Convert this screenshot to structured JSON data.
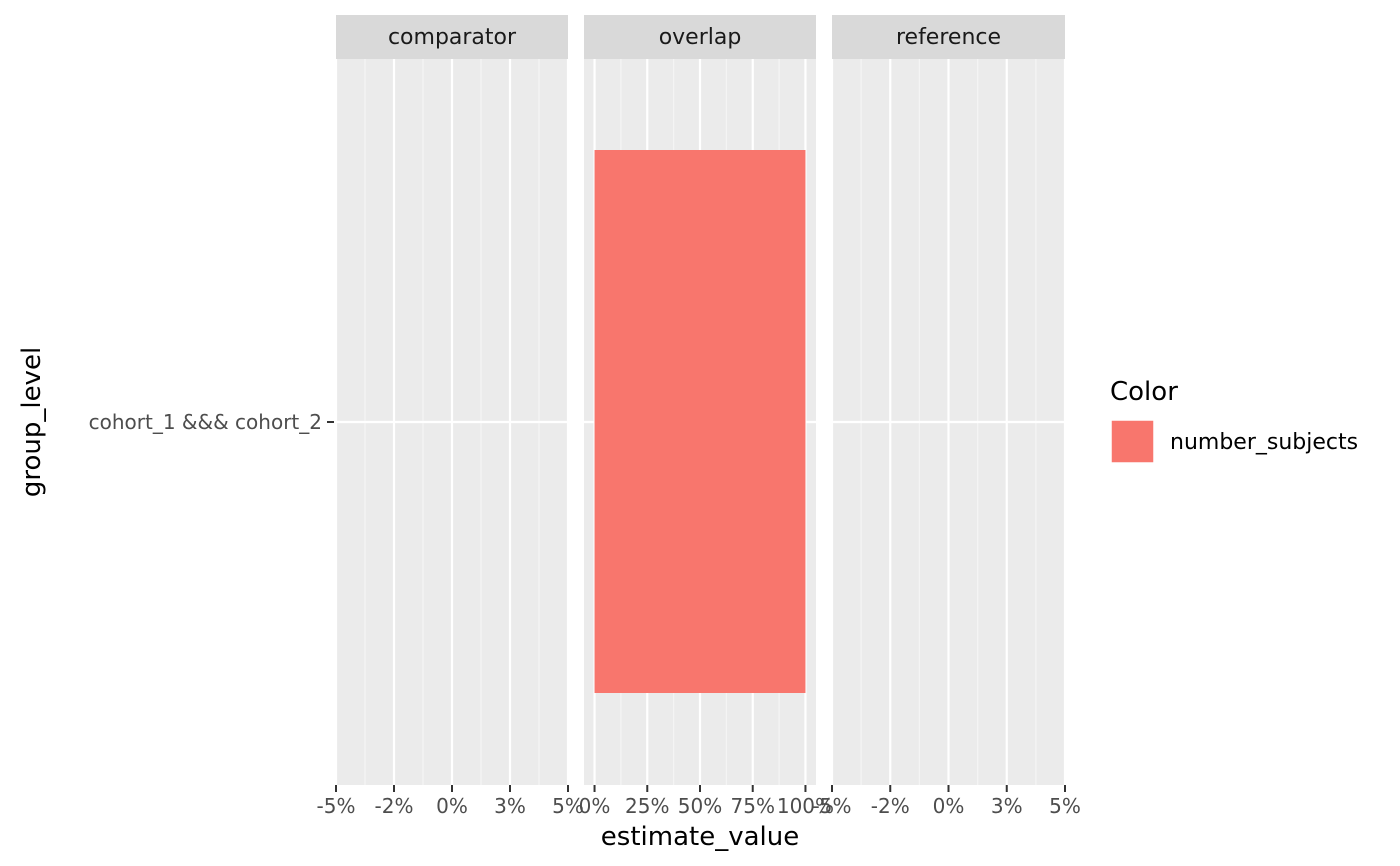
{
  "chart_data": {
    "type": "bar",
    "orientation": "horizontal",
    "facet_by": "variable_name",
    "facets": [
      {
        "label": "comparator",
        "xlim": [
          -5,
          5
        ],
        "x_ticks": [
          -5,
          -2.5,
          0,
          2.5,
          5
        ],
        "x_tick_labels": [
          "-5%",
          "-2%",
          "0%",
          "3%",
          "5%"
        ],
        "bars": []
      },
      {
        "label": "overlap",
        "xlim": [
          -5,
          105
        ],
        "x_ticks": [
          0,
          25,
          50,
          75,
          100
        ],
        "x_tick_labels": [
          "0%",
          "25%",
          "50%",
          "75%",
          "100%"
        ],
        "bars": [
          {
            "category": "cohort_1 &&& cohort_2",
            "value": 100,
            "series": "number_subjects"
          }
        ]
      },
      {
        "label": "reference",
        "xlim": [
          -5,
          5
        ],
        "x_ticks": [
          -5,
          -2.5,
          0,
          2.5,
          5
        ],
        "x_tick_labels": [
          "-5%",
          "-2%",
          "0%",
          "3%",
          "5%"
        ],
        "bars": []
      }
    ],
    "categories": [
      "cohort_1 &&& cohort_2"
    ],
    "series": [
      {
        "name": "number_subjects",
        "color": "#F8766D"
      }
    ],
    "xlabel": "estimate_value",
    "ylabel": "group_level",
    "legend": {
      "title": "Color",
      "position": "right"
    },
    "grid": true,
    "colors": {
      "panel_background": "#EBEBEB",
      "strip_background": "#D9D9D9",
      "grid_major": "#FFFFFF",
      "grid_minor": "#F5F5F5",
      "tick": "#333333"
    }
  }
}
